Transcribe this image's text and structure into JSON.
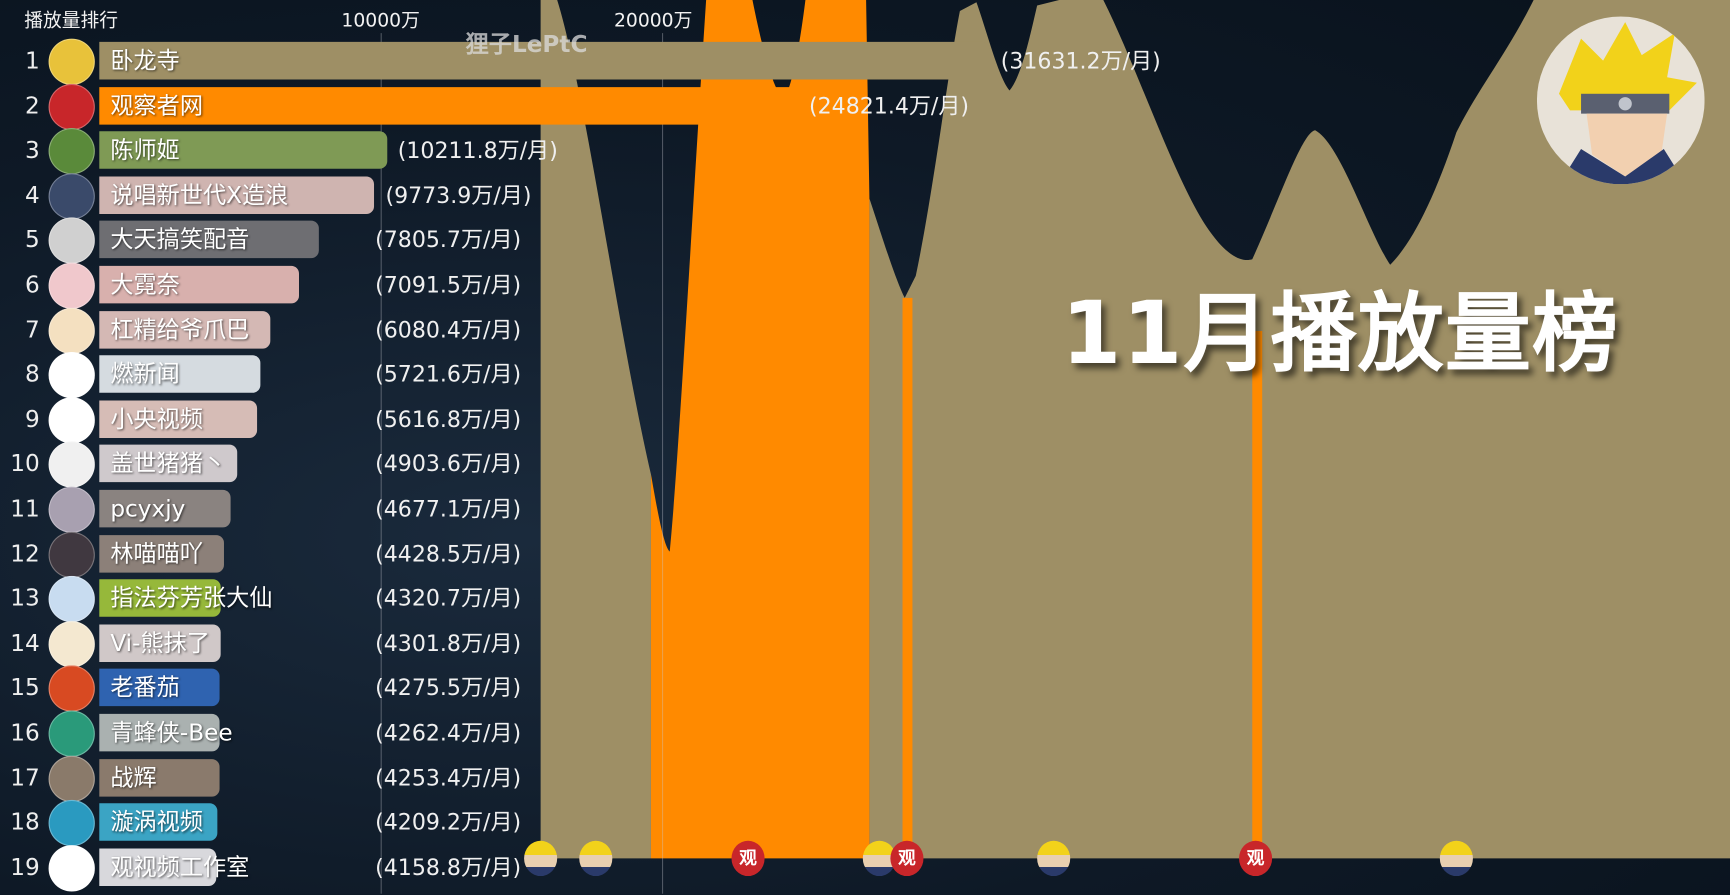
{
  "header": {
    "title": "播放量排行",
    "watermark": "狸子LePtC",
    "month_title": "11月播放量榜"
  },
  "colors": {
    "background": "#0c1622",
    "area": "#9e8f65",
    "highlight": "#ff8a00"
  },
  "chart_data": {
    "type": "bar",
    "title": "播放量排行",
    "xlabel": "",
    "ylabel": "",
    "unit": "万/月",
    "tick_labels": [
      "10000万",
      "20000万"
    ],
    "ticks": [
      10000,
      20000
    ],
    "xlim": [
      0,
      32000
    ],
    "grid": true,
    "categories": [
      "卧龙寺",
      "观察者网",
      "陈师姬",
      "说唱新世代X造浪",
      "大天搞笑配音",
      "大霓奈",
      "杠精给爷爪巴",
      "燃新闻",
      "小央视频",
      "盖世猪猪丶",
      "pcyxjy",
      "林喵喵吖",
      "指法芬芳张大仙",
      "Vi-熊抹了",
      "老番茄",
      "青蜂侠-Bee",
      "战辉",
      "漩涡视频",
      "观视频工作室"
    ],
    "values": [
      31631.2,
      24821.4,
      10211.8,
      9773.9,
      7805.7,
      7091.5,
      6080.4,
      5721.6,
      5616.8,
      4903.6,
      4677.1,
      4428.5,
      4320.7,
      4301.8,
      4275.5,
      4262.4,
      4253.4,
      4209.2,
      4158.8
    ],
    "value_labels": [
      "(31631.2万/月)",
      "(24821.4万/月)",
      "(10211.8万/月)",
      "(9773.9万/月)",
      "(7805.7万/月)",
      "(7091.5万/月)",
      "(6080.4万/月)",
      "(5721.6万/月)",
      "(5616.8万/月)",
      "(4903.6万/月)",
      "(4677.1万/月)",
      "(4428.5万/月)",
      "(4320.7万/月)",
      "(4301.8万/月)",
      "(4275.5万/月)",
      "(4262.4万/月)",
      "(4253.4万/月)",
      "(4209.2万/月)",
      "(4158.8万/月)"
    ],
    "ranks": [
      "1",
      "2",
      "3",
      "4",
      "5",
      "6",
      "7",
      "8",
      "9",
      "10",
      "11",
      "12",
      "13",
      "14",
      "15",
      "16",
      "17",
      "18",
      "19"
    ],
    "bar_colors": [
      "#9e8f65",
      "#ff8a00",
      "#7f9a55",
      "#cfb4b0",
      "#6e6e72",
      "#d8b0ad",
      "#d4b8b4",
      "#d5dbe0",
      "#d6bcb6",
      "#cfc9cc",
      "#8a8380",
      "#8c8079",
      "#96b83a",
      "#d0c8c8",
      "#2f63b0",
      "#aab1b0",
      "#8a7a6c",
      "#3ba4c4",
      "#d8d8dc"
    ],
    "avatar_colors": [
      "#e8c23a",
      "#c8262a",
      "#5a8a3a",
      "#3a4a6a",
      "#d0d0d0",
      "#f0c8cc",
      "#f4e0c0",
      "#ffffff",
      "#ffffff",
      "#f0f0f0",
      "#a8a0b0",
      "#403840",
      "#c8dcf0",
      "#f4e8d0",
      "#d84a22",
      "#2a9a7a",
      "#8a7a6a",
      "#2a9ac0",
      "#ffffff"
    ]
  },
  "markers": [
    "naruto",
    "naruto",
    "guan",
    "naruto",
    "guan",
    "naruto",
    "guan",
    "naruto"
  ],
  "marker_glyph": "观"
}
